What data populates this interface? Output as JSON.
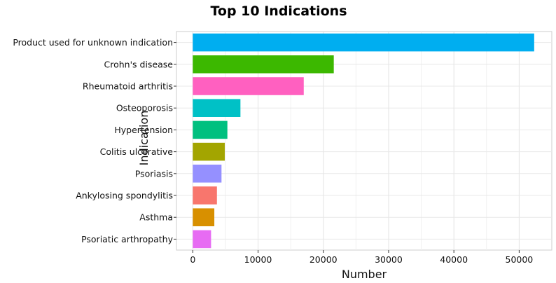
{
  "chart_data": {
    "type": "bar",
    "orientation": "horizontal",
    "title": "Top 10 Indications",
    "xlabel": "Number",
    "ylabel": "Indication",
    "xlim": [
      -2500,
      55000
    ],
    "xticks": [
      0,
      10000,
      20000,
      30000,
      40000,
      50000
    ],
    "xtick_labels": [
      "0",
      "10000",
      "20000",
      "30000",
      "40000",
      "50000"
    ],
    "grid": true,
    "legend": "none",
    "categories": [
      "Product used for unknown indication",
      "Crohn's disease",
      "Rheumatoid arthritis",
      "Osteoporosis",
      "Hypertension",
      "Colitis ulcerative",
      "Psoriasis",
      "Ankylosing spondylitis",
      "Asthma",
      "Psoriatic arthropathy"
    ],
    "values": [
      52300,
      21600,
      17000,
      7300,
      5300,
      4900,
      4400,
      3700,
      3300,
      2800
    ],
    "colors": [
      "#00aef0",
      "#3cb800",
      "#ff60c0",
      "#00c1c6",
      "#00c07f",
      "#a3a500",
      "#9590ff",
      "#f8766d",
      "#d89000",
      "#e76bf3"
    ]
  }
}
